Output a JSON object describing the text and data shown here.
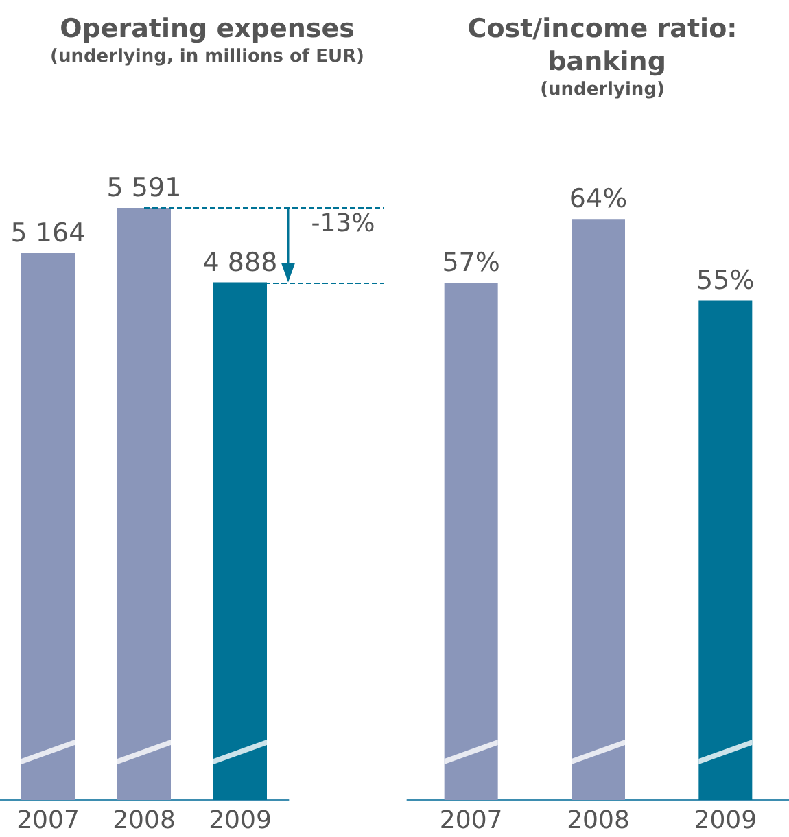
{
  "chart_data": [
    {
      "type": "bar",
      "title": "Operating expenses",
      "subtitle": "(underlying, in millions of EUR)",
      "categories": [
        "2007",
        "2008",
        "2009"
      ],
      "values": [
        5164,
        5591,
        4888
      ],
      "colors": [
        "#8a96ba",
        "#8a96ba",
        "#007396"
      ],
      "value_labels": [
        "5 164",
        "5 591",
        "4 888"
      ],
      "ref_lines": [
        {
          "axis": "y",
          "value": 5591,
          "color": "#007396",
          "line_style": "dashed"
        },
        {
          "axis": "y",
          "value": 4888,
          "color": "#007396",
          "line_style": "dashed"
        }
      ],
      "annotations": [
        "-13%"
      ]
    },
    {
      "type": "bar",
      "title": "Cost/income ratio: banking",
      "subtitle": "(underlying)",
      "categories": [
        "2007",
        "2008",
        "2009"
      ],
      "values": [
        57,
        64,
        55
      ],
      "colors": [
        "#8a96ba",
        "#8a96ba",
        "#007396"
      ],
      "value_labels": [
        "57%",
        "64%",
        "55%"
      ]
    }
  ]
}
